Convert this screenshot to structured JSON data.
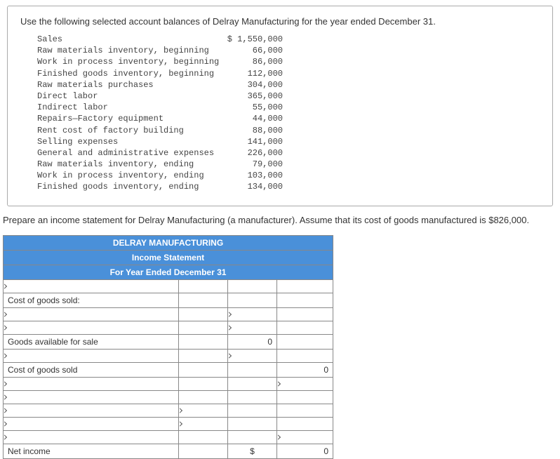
{
  "problem": {
    "prompt": "Use the following selected account balances of Delray Manufacturing for the year ended December 31.",
    "rows": [
      {
        "label": "Sales",
        "value": "$ 1,550,000"
      },
      {
        "label": "Raw materials inventory, beginning",
        "value": "66,000"
      },
      {
        "label": "Work in process inventory, beginning",
        "value": "86,000"
      },
      {
        "label": "Finished goods inventory, beginning",
        "value": "112,000"
      },
      {
        "label": "Raw materials purchases",
        "value": "304,000"
      },
      {
        "label": "Direct labor",
        "value": "365,000"
      },
      {
        "label": "Indirect labor",
        "value": "55,000"
      },
      {
        "label": "Repairs—Factory equipment",
        "value": "44,000"
      },
      {
        "label": "Rent cost of factory building",
        "value": "88,000"
      },
      {
        "label": "Selling expenses",
        "value": "141,000"
      },
      {
        "label": "General and administrative expenses",
        "value": "226,000"
      },
      {
        "label": "Raw materials inventory, ending",
        "value": "79,000"
      },
      {
        "label": "Work in process inventory, ending",
        "value": "103,000"
      },
      {
        "label": "Finished goods inventory, ending",
        "value": "134,000"
      }
    ]
  },
  "instruction": "Prepare an income statement for Delray Manufacturing (a manufacturer). Assume that its cost of goods manufactured is $826,000.",
  "statement": {
    "header1": "DELRAY MANUFACTURING",
    "header2": "Income Statement",
    "header3": "For Year Ended December 31",
    "labels": {
      "cogs": "Cost of goods sold:",
      "gas": "Goods available for sale",
      "cogsold": "Cost of goods sold",
      "net": "Net income"
    },
    "values": {
      "gas_c3": "0",
      "cogsold_c4": "0",
      "net_cur": "$",
      "net_c4": "0"
    }
  }
}
